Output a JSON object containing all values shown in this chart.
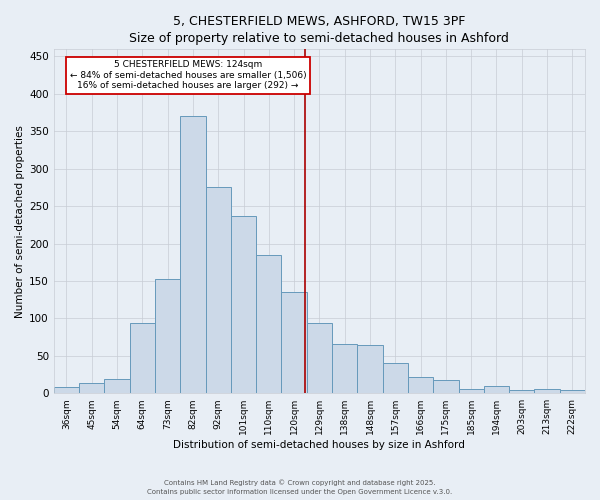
{
  "title": "5, CHESTERFIELD MEWS, ASHFORD, TW15 3PF",
  "subtitle": "Size of property relative to semi-detached houses in Ashford",
  "xlabel": "Distribution of semi-detached houses by size in Ashford",
  "ylabel": "Number of semi-detached properties",
  "categories": [
    "36sqm",
    "45sqm",
    "54sqm",
    "64sqm",
    "73sqm",
    "82sqm",
    "92sqm",
    "101sqm",
    "110sqm",
    "120sqm",
    "129sqm",
    "138sqm",
    "148sqm",
    "157sqm",
    "166sqm",
    "175sqm",
    "185sqm",
    "194sqm",
    "203sqm",
    "213sqm",
    "222sqm"
  ],
  "values": [
    8,
    14,
    19,
    94,
    153,
    370,
    275,
    237,
    185,
    135,
    94,
    66,
    65,
    40,
    22,
    17,
    5,
    9,
    4,
    5,
    4
  ],
  "bar_color": "#ccd9e8",
  "bar_edge_color": "#6699bb",
  "background_color": "#e8eef5",
  "grid_color": "#c8ccd4",
  "vline_color": "#aa0000",
  "annotation_text": "5 CHESTERFIELD MEWS: 124sqm\n← 84% of semi-detached houses are smaller (1,506)\n16% of semi-detached houses are larger (292) →",
  "annotation_box_color": "#ffffff",
  "annotation_box_edge": "#cc0000",
  "ylim": [
    0,
    460
  ],
  "yticks": [
    0,
    50,
    100,
    150,
    200,
    250,
    300,
    350,
    400,
    450
  ],
  "footer_line1": "Contains HM Land Registry data © Crown copyright and database right 2025.",
  "footer_line2": "Contains public sector information licensed under the Open Government Licence v.3.0."
}
